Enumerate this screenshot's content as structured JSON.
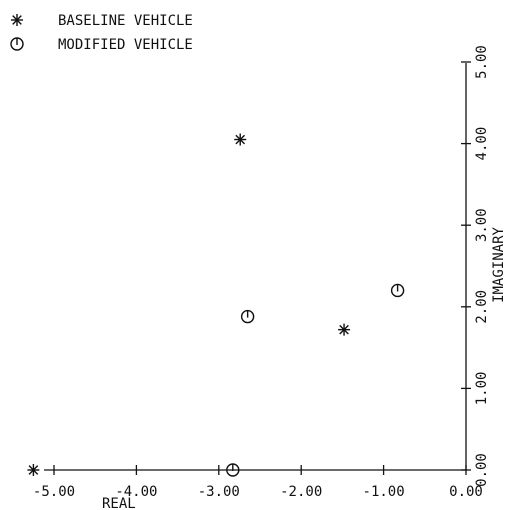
{
  "chart_data": {
    "type": "scatter",
    "xlabel": "REAL",
    "ylabel": "IMAGINARY",
    "xlim": [
      -5.0,
      0.0
    ],
    "ylim": [
      0.0,
      5.0
    ],
    "x_ticks": [
      "-5.00",
      "-4.00",
      "-3.00",
      "-2.00",
      "-1.00",
      "0.00"
    ],
    "y_ticks": [
      "0.00",
      "1.00",
      "2.00",
      "3.00",
      "4.00",
      "5.00"
    ],
    "legend_position": "top-left",
    "series": [
      {
        "name": "BASELINE VEHICLE",
        "marker": "asterisk",
        "points": [
          {
            "x": -5.25,
            "y": 0.0
          },
          {
            "x": -2.74,
            "y": 4.05
          },
          {
            "x": -1.48,
            "y": 1.72
          }
        ]
      },
      {
        "name": "MODIFIED VEHICLE",
        "marker": "circle-tick",
        "points": [
          {
            "x": -2.83,
            "y": 0.0
          },
          {
            "x": -2.65,
            "y": 1.88
          },
          {
            "x": -0.83,
            "y": 2.2
          }
        ]
      }
    ]
  }
}
